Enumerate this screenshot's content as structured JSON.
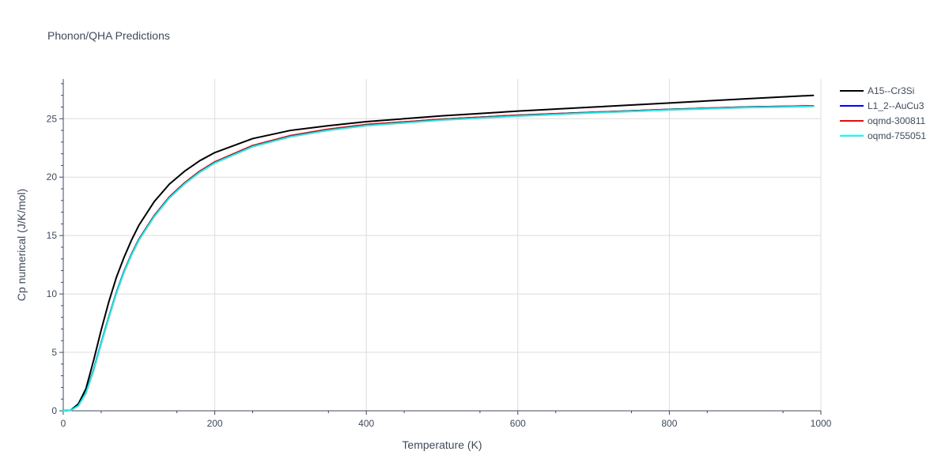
{
  "chart_data": {
    "type": "line",
    "title": "Phonon/QHA Predictions",
    "xlabel": "Temperature (K)",
    "ylabel": "Cp numerical (J/K/mol)",
    "xlim": [
      0,
      1000
    ],
    "ylim": [
      0,
      28.4
    ],
    "xticks": [
      0,
      200,
      400,
      600,
      800,
      1000
    ],
    "xtick_labels": [
      "0",
      "200",
      "400",
      "600",
      "800",
      "1000"
    ],
    "yticks": [
      0,
      5,
      10,
      15,
      20,
      25
    ],
    "ytick_labels": [
      "0",
      "5",
      "10",
      "15",
      "20",
      "25"
    ],
    "grid": true,
    "legend_position": "top-right outside",
    "x": [
      0,
      10,
      20,
      30,
      40,
      50,
      60,
      70,
      80,
      90,
      100,
      120,
      140,
      160,
      180,
      200,
      250,
      300,
      350,
      400,
      500,
      600,
      700,
      800,
      900,
      990
    ],
    "series": [
      {
        "name": "A15--Cr3Si",
        "color": "#000000",
        "values": [
          0,
          0.05,
          0.6,
          1.9,
          4.3,
          6.9,
          9.3,
          11.4,
          13.1,
          14.6,
          15.9,
          17.9,
          19.4,
          20.5,
          21.4,
          22.1,
          23.3,
          24.0,
          24.4,
          24.75,
          25.25,
          25.65,
          26.0,
          26.35,
          26.7,
          27.0
        ]
      },
      {
        "name": "L1_2--AuCu3",
        "color": "#0000ff",
        "values": [
          0,
          0.04,
          0.45,
          1.55,
          3.5,
          5.8,
          8.0,
          10.1,
          11.9,
          13.4,
          14.7,
          16.7,
          18.3,
          19.5,
          20.5,
          21.3,
          22.7,
          23.55,
          24.1,
          24.5,
          24.95,
          25.3,
          25.55,
          25.8,
          26.0,
          26.1
        ]
      },
      {
        "name": "oqmd-300811",
        "color": "#ff0000",
        "values": [
          0,
          0.04,
          0.45,
          1.55,
          3.5,
          5.8,
          8.0,
          10.1,
          11.9,
          13.4,
          14.7,
          16.7,
          18.3,
          19.5,
          20.5,
          21.3,
          22.7,
          23.55,
          24.1,
          24.5,
          24.95,
          25.3,
          25.55,
          25.8,
          26.0,
          26.1
        ]
      },
      {
        "name": "oqmd-755051",
        "color": "#00ffff",
        "values": [
          0,
          0.03,
          0.42,
          1.5,
          3.4,
          5.7,
          7.9,
          10.0,
          11.8,
          13.3,
          14.6,
          16.6,
          18.2,
          19.4,
          20.4,
          21.2,
          22.6,
          23.45,
          24.0,
          24.4,
          24.88,
          25.22,
          25.5,
          25.75,
          25.95,
          26.05
        ]
      }
    ]
  }
}
